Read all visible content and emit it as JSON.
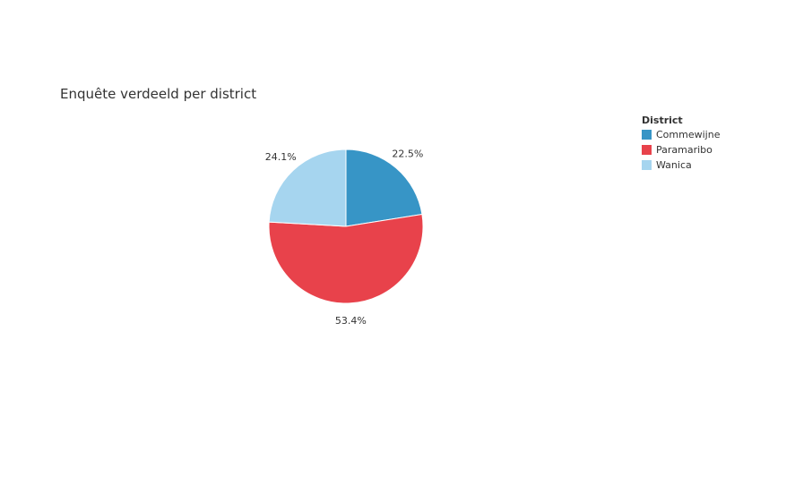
{
  "chart_data": {
    "type": "pie",
    "title": "Enquête verdeeld per district",
    "legend_title": "District",
    "legend_position": "top-right",
    "slices": [
      {
        "name": "Commewijne",
        "value": 22.5,
        "label": "22.5%",
        "color": "#3795c6"
      },
      {
        "name": "Paramaribo",
        "value": 53.4,
        "label": "53.4%",
        "color": "#e8424b"
      },
      {
        "name": "Wanica",
        "value": 24.1,
        "label": "24.1%",
        "color": "#a6d5ef"
      }
    ]
  }
}
